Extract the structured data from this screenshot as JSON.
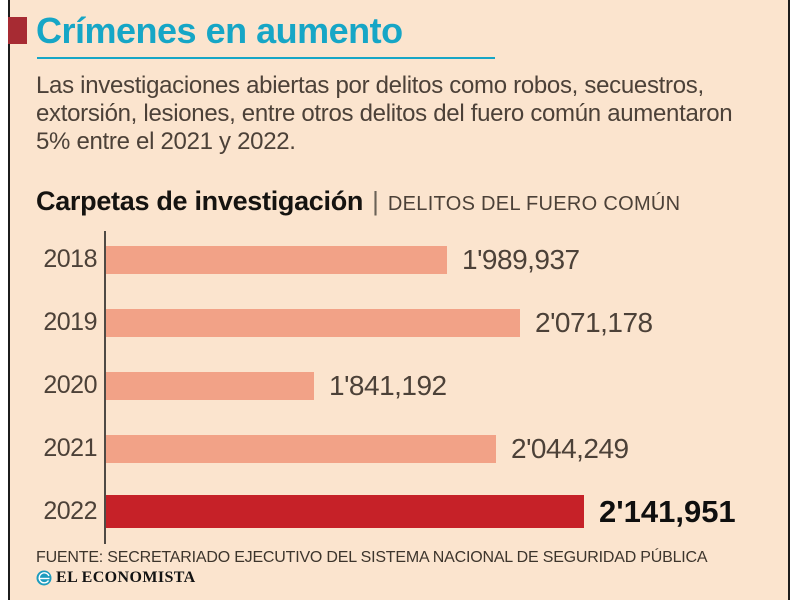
{
  "header": {
    "title": "Crímenes en aumento",
    "subtitle_lines": [
      "Las investigaciones abiertas por delitos como robos, secuestros,",
      "extorsión, lesiones, entre otros delitos del fuero común aumentaron",
      "5% entre el 2021 y 2022."
    ]
  },
  "chart_heading": {
    "main": "Carpetas de investigación",
    "separator": "|",
    "sub": "DELITOS DEL FUERO COMÚN"
  },
  "chart_data": {
    "type": "bar",
    "orientation": "horizontal",
    "title": "Carpetas de investigación",
    "subtitle": "DELITOS DEL FUERO COMÚN",
    "categories": [
      "2018",
      "2019",
      "2020",
      "2021",
      "2022"
    ],
    "values": [
      1989937,
      2071178,
      1841192,
      2044249,
      2141951
    ],
    "value_labels": [
      "1'989,937",
      "2'071,178",
      "1'841,192",
      "2'044,249",
      "2'141,951"
    ],
    "highlight_index": 4,
    "xlim": [
      1610000,
      2142000
    ],
    "grid": false,
    "legend": false,
    "bar_color": "#f2a287",
    "highlight_color": "#c62128"
  },
  "footer": {
    "source": "FUENTE: SECRETARIADO EJECUTIVO DEL SISTEMA NACIONAL DE SEGURIDAD PÚBLICA",
    "brand": "EL ECONOMISTA"
  },
  "colors": {
    "background": "#fbe4ce",
    "accent_teal": "#16a6c6",
    "flag_red": "#a72b33",
    "body_text": "#4c4138",
    "frame_rule": "#1c1c1c"
  }
}
